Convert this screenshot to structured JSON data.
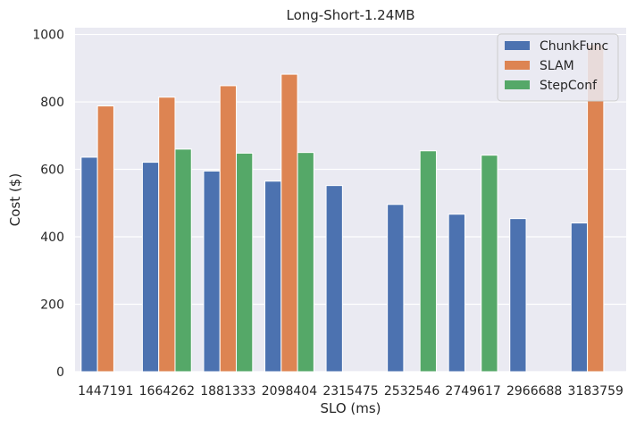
{
  "chart_data": {
    "type": "bar",
    "title": "Long-Short-1.24MB",
    "xlabel": "SLO (ms)",
    "ylabel": "Cost ($)",
    "ylim": [
      0,
      1020
    ],
    "yticks": [
      0,
      200,
      400,
      600,
      800,
      1000
    ],
    "categories": [
      "1447191",
      "1664262",
      "1881333",
      "2098404",
      "2315475",
      "2532546",
      "2749617",
      "2966688",
      "3183759"
    ],
    "series": [
      {
        "name": "ChunkFunc",
        "color": "#4c72b0",
        "values": [
          636,
          621,
          595,
          565,
          552,
          496,
          467,
          454,
          441
        ]
      },
      {
        "name": "SLAM",
        "color": "#dd8452",
        "values": [
          788,
          814,
          848,
          882,
          null,
          null,
          null,
          null,
          970
        ]
      },
      {
        "name": "StepConf",
        "color": "#55a868",
        "values": [
          null,
          660,
          648,
          650,
          null,
          655,
          642,
          null,
          null
        ]
      }
    ],
    "grid": true,
    "legend_position": "top-right",
    "background": "#eaeaf2"
  }
}
